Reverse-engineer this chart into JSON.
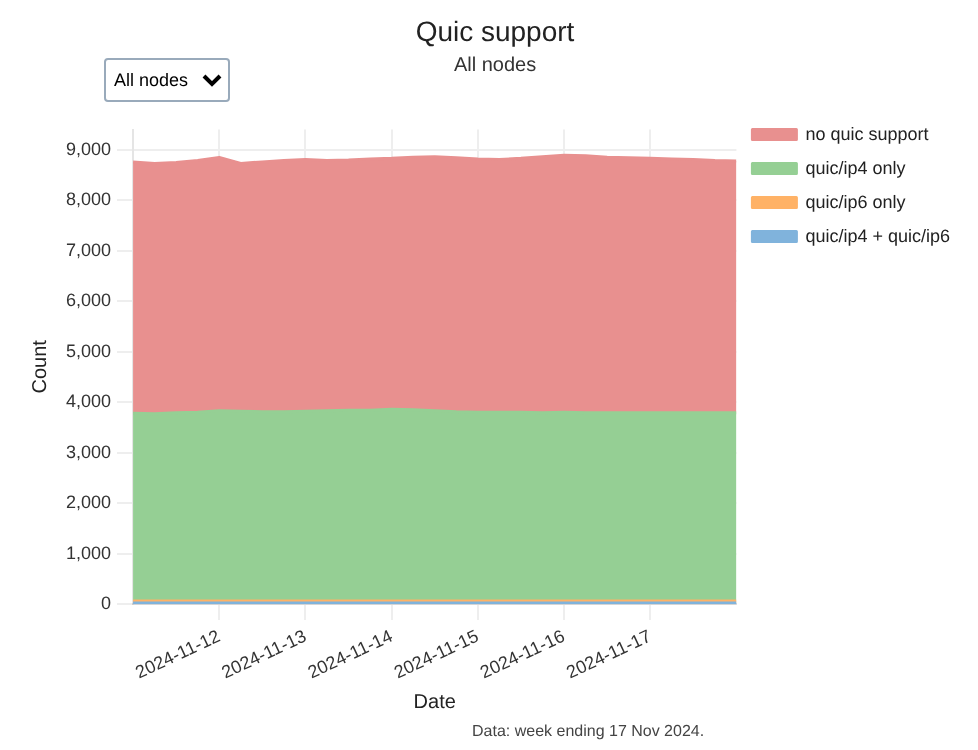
{
  "chart_data": {
    "type": "area",
    "title": "Quic support",
    "subtitle": "All nodes",
    "xlabel": "Date",
    "ylabel": "Count",
    "annotations": [
      "All nodes",
      "Data: week ending 17 Nov 2024."
    ],
    "x": [
      "2024-11-11T00:00",
      "2024-11-11T06:00",
      "2024-11-11T12:00",
      "2024-11-11T18:00",
      "2024-11-12T00:00",
      "2024-11-12T06:00",
      "2024-11-12T12:00",
      "2024-11-12T18:00",
      "2024-11-13T00:00",
      "2024-11-13T06:00",
      "2024-11-13T12:00",
      "2024-11-13T18:00",
      "2024-11-14T00:00",
      "2024-11-14T06:00",
      "2024-11-14T12:00",
      "2024-11-14T18:00",
      "2024-11-15T00:00",
      "2024-11-15T06:00",
      "2024-11-15T12:00",
      "2024-11-15T18:00",
      "2024-11-16T00:00",
      "2024-11-16T06:00",
      "2024-11-16T12:00",
      "2024-11-16T18:00",
      "2024-11-17T00:00",
      "2024-11-17T06:00",
      "2024-11-17T12:00",
      "2024-11-17T18:00",
      "2024-11-18T00:00"
    ],
    "stacked": true,
    "marker": "none",
    "grid": true,
    "legend": "top right",
    "series": [
      {
        "name": "quic/ip4 + quic/ip6",
        "color": "#80b3dc",
        "values": [
          20,
          20,
          20,
          20,
          20,
          20,
          20,
          20,
          20,
          20,
          20,
          20,
          20,
          20,
          20,
          20,
          20,
          20,
          20,
          20,
          20,
          20,
          20,
          20,
          20,
          20,
          20,
          20,
          20
        ]
      },
      {
        "name": "quic/ip6 only",
        "color": "#ffb266",
        "values": [
          40,
          40,
          40,
          40,
          40,
          40,
          40,
          40,
          40,
          40,
          40,
          40,
          40,
          40,
          40,
          40,
          40,
          40,
          40,
          40,
          40,
          40,
          40,
          40,
          40,
          40,
          40,
          40,
          40
        ]
      },
      {
        "name": "quic/ip4 only",
        "color": "#95cf94",
        "values": [
          3720,
          3710,
          3730,
          3740,
          3770,
          3760,
          3750,
          3750,
          3760,
          3770,
          3780,
          3780,
          3800,
          3790,
          3770,
          3750,
          3740,
          3740,
          3740,
          3730,
          3740,
          3730,
          3730,
          3730,
          3730,
          3730,
          3730,
          3730,
          3730
        ]
      },
      {
        "name": "no quic support",
        "color": "#e8908f",
        "values": [
          4980,
          4960,
          4960,
          4990,
          5020,
          4910,
          4950,
          4980,
          4990,
          4960,
          4960,
          4980,
          4970,
          5000,
          5030,
          5030,
          5020,
          5010,
          5030,
          5070,
          5090,
          5090,
          5060,
          5050,
          5040,
          5030,
          5020,
          5000,
          4990
        ]
      }
    ],
    "xlim": [
      "2024-11-11",
      "2024-11-18"
    ],
    "xticks": [
      "2024-11-12",
      "2024-11-13",
      "2024-11-14",
      "2024-11-15",
      "2024-11-16",
      "2024-11-17"
    ],
    "ylim": [
      0,
      9400
    ],
    "yticks": [
      0,
      {
        "value": 1000,
        "label": "1,000"
      },
      {
        "value": 2000,
        "label": "2,000"
      },
      {
        "value": 3000,
        "label": "3,000"
      },
      {
        "value": 4000,
        "label": "4,000"
      },
      {
        "value": 5000,
        "label": "5,000"
      },
      {
        "value": 6000,
        "label": "6,000"
      },
      {
        "value": 7000,
        "label": "7,000"
      },
      {
        "value": 8000,
        "label": "8,000"
      },
      {
        "value": 9000,
        "label": "9,000"
      }
    ]
  }
}
